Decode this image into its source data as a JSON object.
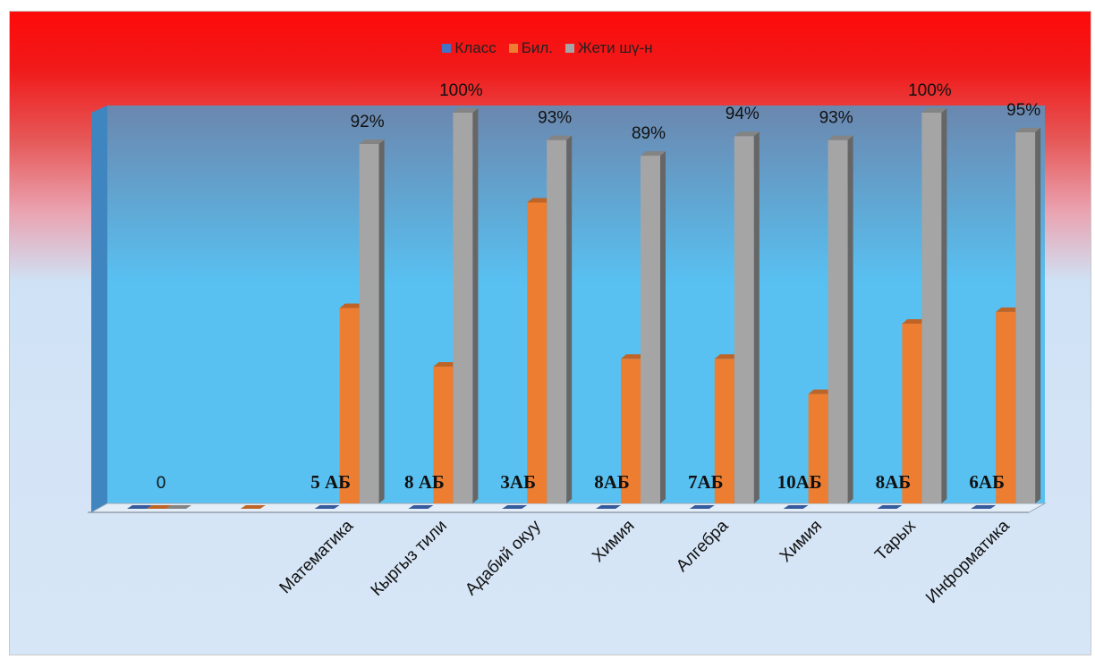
{
  "chart_data": {
    "type": "bar",
    "categories": [
      "",
      "",
      "Математика",
      "Кыргыз тили",
      "Адабий окуу",
      "Химия",
      "Алгебра",
      "Химия",
      "Тарых",
      "Информатика"
    ],
    "series": [
      {
        "name": "Класс",
        "color": "#4472c4",
        "values": [
          0,
          null,
          0,
          0,
          0,
          0,
          0,
          0,
          0,
          0
        ],
        "labels": [
          "0",
          "",
          "5 АБ",
          "8 АБ",
          "3АБ",
          "8АБ",
          "7АБ",
          "10АБ",
          "8АБ",
          "6АБ"
        ]
      },
      {
        "name": "Бил.",
        "color": "#ed7d31",
        "values": [
          0,
          0,
          50,
          35,
          77,
          37,
          37,
          28,
          46,
          49
        ]
      },
      {
        "name": "Жети шү-н",
        "color": "#a5a5a5",
        "values": [
          0,
          null,
          92,
          100,
          93,
          89,
          94,
          93,
          100,
          95
        ],
        "labels": [
          "",
          "",
          "92%",
          "100%",
          "93%",
          "89%",
          "94%",
          "93%",
          "100%",
          "95%"
        ]
      }
    ],
    "ylim": [
      0,
      100
    ],
    "grid": false,
    "legend": "top",
    "plot_colors": {
      "wall_top": "#6b87ae",
      "wall_bottom": "#58c1f2",
      "floor": "#e4eef8"
    }
  }
}
